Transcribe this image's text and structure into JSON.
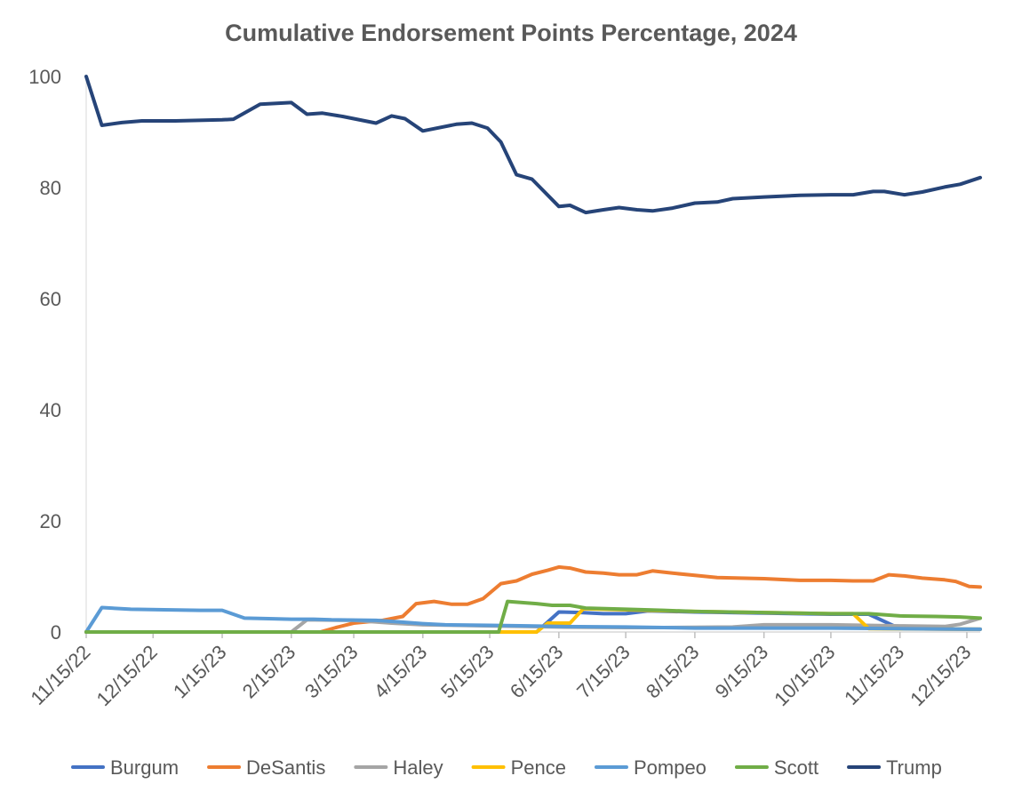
{
  "chart_data": {
    "type": "line",
    "title": "Cumulative Endorsement Points Percentage, 2024",
    "xlabel": "",
    "ylabel": "",
    "ylim": [
      0,
      100
    ],
    "yticks": [
      0,
      20,
      40,
      60,
      80,
      100
    ],
    "xlim": [
      "11/15/22",
      "12/21/23"
    ],
    "xticks": [
      "11/15/22",
      "12/15/22",
      "1/15/23",
      "2/15/23",
      "3/15/23",
      "4/15/23",
      "5/15/23",
      "6/15/23",
      "7/15/23",
      "8/15/23",
      "9/15/23",
      "10/15/23",
      "11/15/23",
      "12/15/23"
    ],
    "grid": false,
    "legend_position": "bottom",
    "series": [
      {
        "name": "Burgum",
        "color": "#4472C4",
        "points": [
          [
            "11/15/22",
            0
          ],
          [
            "6/5/23",
            0
          ],
          [
            "6/15/23",
            3.6
          ],
          [
            "6/25/23",
            3.5
          ],
          [
            "7/5/23",
            3.3
          ],
          [
            "7/15/23",
            3.3
          ],
          [
            "7/25/23",
            3.8
          ],
          [
            "8/15/23",
            3.6
          ],
          [
            "9/15/23",
            3.4
          ],
          [
            "10/15/23",
            3.2
          ],
          [
            "11/1/23",
            3.2
          ],
          [
            "11/15/23",
            0.6
          ],
          [
            "12/21/23",
            0.5
          ]
        ]
      },
      {
        "name": "DeSantis",
        "color": "#ED7D31",
        "points": [
          [
            "11/15/22",
            0
          ],
          [
            "2/28/23",
            0
          ],
          [
            "3/7/23",
            0.8
          ],
          [
            "3/15/23",
            1.6
          ],
          [
            "3/28/23",
            2.1
          ],
          [
            "4/6/23",
            2.8
          ],
          [
            "4/12/23",
            5.1
          ],
          [
            "4/20/23",
            5.5
          ],
          [
            "4/28/23",
            5.0
          ],
          [
            "5/5/23",
            5.0
          ],
          [
            "5/12/23",
            6.0
          ],
          [
            "5/20/23",
            8.7
          ],
          [
            "5/27/23",
            9.2
          ],
          [
            "6/3/23",
            10.4
          ],
          [
            "6/10/23",
            11.1
          ],
          [
            "6/15/23",
            11.7
          ],
          [
            "6/20/23",
            11.5
          ],
          [
            "6/27/23",
            10.8
          ],
          [
            "7/5/23",
            10.6
          ],
          [
            "7/12/23",
            10.3
          ],
          [
            "7/20/23",
            10.3
          ],
          [
            "7/27/23",
            11.0
          ],
          [
            "8/5/23",
            10.6
          ],
          [
            "8/15/23",
            10.2
          ],
          [
            "8/25/23",
            9.8
          ],
          [
            "9/15/23",
            9.6
          ],
          [
            "10/1/23",
            9.3
          ],
          [
            "10/15/23",
            9.3
          ],
          [
            "10/25/23",
            9.2
          ],
          [
            "11/3/23",
            9.2
          ],
          [
            "11/10/23",
            10.3
          ],
          [
            "11/17/23",
            10.1
          ],
          [
            "11/25/23",
            9.7
          ],
          [
            "12/5/23",
            9.4
          ],
          [
            "12/10/23",
            9.1
          ],
          [
            "12/16/23",
            8.2
          ],
          [
            "12/21/23",
            8.1
          ]
        ]
      },
      {
        "name": "Haley",
        "color": "#A5A5A5",
        "points": [
          [
            "11/15/22",
            0
          ],
          [
            "2/15/23",
            0
          ],
          [
            "2/22/23",
            2.2
          ],
          [
            "3/15/23",
            2.1
          ],
          [
            "4/1/23",
            1.6
          ],
          [
            "4/15/23",
            1.3
          ],
          [
            "5/1/23",
            1.2
          ],
          [
            "5/15/23",
            1.1
          ],
          [
            "6/1/23",
            1.0
          ],
          [
            "6/15/23",
            0.9
          ],
          [
            "7/15/23",
            0.8
          ],
          [
            "8/1/23",
            0.8
          ],
          [
            "9/1/23",
            0.9
          ],
          [
            "9/15/23",
            1.3
          ],
          [
            "10/15/23",
            1.3
          ],
          [
            "11/15/23",
            1.1
          ],
          [
            "12/5/23",
            1.0
          ],
          [
            "12/12/23",
            1.4
          ],
          [
            "12/21/23",
            2.5
          ]
        ]
      },
      {
        "name": "Pence",
        "color": "#FFC000",
        "points": [
          [
            "11/15/22",
            0
          ],
          [
            "6/5/23",
            0
          ],
          [
            "6/10/23",
            1.6
          ],
          [
            "6/20/23",
            1.6
          ],
          [
            "6/26/23",
            4.2
          ],
          [
            "7/15/23",
            4.0
          ],
          [
            "8/15/23",
            3.7
          ],
          [
            "9/15/23",
            3.5
          ],
          [
            "10/15/23",
            3.3
          ],
          [
            "10/25/23",
            3.3
          ],
          [
            "11/1/23",
            0.6
          ],
          [
            "12/21/23",
            0.5
          ]
        ]
      },
      {
        "name": "Pompeo",
        "color": "#5B9BD5",
        "points": [
          [
            "11/15/22",
            0
          ],
          [
            "11/22/22",
            4.4
          ],
          [
            "12/5/22",
            4.1
          ],
          [
            "12/20/22",
            4.0
          ],
          [
            "1/5/23",
            3.9
          ],
          [
            "1/15/23",
            3.9
          ],
          [
            "1/25/23",
            2.5
          ],
          [
            "2/5/23",
            2.4
          ],
          [
            "2/15/23",
            2.3
          ],
          [
            "2/25/23",
            2.3
          ],
          [
            "3/5/23",
            2.2
          ],
          [
            "3/25/23",
            2.1
          ],
          [
            "4/5/23",
            1.8
          ],
          [
            "4/15/23",
            1.5
          ],
          [
            "4/25/23",
            1.3
          ],
          [
            "5/15/23",
            1.2
          ],
          [
            "6/1/23",
            1.1
          ],
          [
            "6/15/23",
            1.0
          ],
          [
            "7/15/23",
            0.9
          ],
          [
            "8/1/23",
            0.8
          ],
          [
            "8/15/23",
            0.7
          ],
          [
            "9/15/23",
            0.7
          ],
          [
            "10/15/23",
            0.7
          ],
          [
            "11/15/23",
            0.6
          ],
          [
            "12/21/23",
            0.5
          ]
        ]
      },
      {
        "name": "Scott",
        "color": "#70AD47",
        "points": [
          [
            "11/15/22",
            0
          ],
          [
            "5/19/23",
            0
          ],
          [
            "5/23/23",
            5.5
          ],
          [
            "6/5/23",
            5.1
          ],
          [
            "6/12/23",
            4.8
          ],
          [
            "6/20/23",
            4.8
          ],
          [
            "6/27/23",
            4.3
          ],
          [
            "7/15/23",
            4.1
          ],
          [
            "8/1/23",
            3.9
          ],
          [
            "8/15/23",
            3.7
          ],
          [
            "9/15/23",
            3.5
          ],
          [
            "10/15/23",
            3.3
          ],
          [
            "11/1/23",
            3.3
          ],
          [
            "11/15/23",
            2.9
          ],
          [
            "12/1/23",
            2.8
          ],
          [
            "12/12/23",
            2.7
          ],
          [
            "12/21/23",
            2.5
          ]
        ]
      },
      {
        "name": "Trump",
        "color": "#264478",
        "points": [
          [
            "11/15/22",
            100
          ],
          [
            "11/22/22",
            91.2
          ],
          [
            "12/1/22",
            91.7
          ],
          [
            "12/10/22",
            92.0
          ],
          [
            "12/25/22",
            92.0
          ],
          [
            "1/15/23",
            92.2
          ],
          [
            "1/20/23",
            92.3
          ],
          [
            "2/1/23",
            95.0
          ],
          [
            "2/15/23",
            95.3
          ],
          [
            "2/22/23",
            93.2
          ],
          [
            "3/1/23",
            93.4
          ],
          [
            "3/10/23",
            92.8
          ],
          [
            "3/25/23",
            91.6
          ],
          [
            "4/1/23",
            92.9
          ],
          [
            "4/7/23",
            92.4
          ],
          [
            "4/15/23",
            90.2
          ],
          [
            "4/30/23",
            91.4
          ],
          [
            "5/7/23",
            91.6
          ],
          [
            "5/14/23",
            90.7
          ],
          [
            "5/20/23",
            88.2
          ],
          [
            "5/27/23",
            82.3
          ],
          [
            "6/3/23",
            81.5
          ],
          [
            "6/15/23",
            76.6
          ],
          [
            "6/20/23",
            76.8
          ],
          [
            "6/27/23",
            75.5
          ],
          [
            "7/5/23",
            76.0
          ],
          [
            "7/12/23",
            76.4
          ],
          [
            "7/20/23",
            76.0
          ],
          [
            "7/27/23",
            75.8
          ],
          [
            "8/5/23",
            76.3
          ],
          [
            "8/15/23",
            77.2
          ],
          [
            "8/25/23",
            77.4
          ],
          [
            "9/1/23",
            78.0
          ],
          [
            "9/15/23",
            78.3
          ],
          [
            "10/1/23",
            78.6
          ],
          [
            "10/15/23",
            78.7
          ],
          [
            "10/25/23",
            78.7
          ],
          [
            "11/3/23",
            79.3
          ],
          [
            "11/8/23",
            79.3
          ],
          [
            "11/17/23",
            78.7
          ],
          [
            "11/25/23",
            79.2
          ],
          [
            "12/5/23",
            80.1
          ],
          [
            "12/12/23",
            80.6
          ],
          [
            "12/21/23",
            81.8
          ]
        ]
      }
    ]
  }
}
